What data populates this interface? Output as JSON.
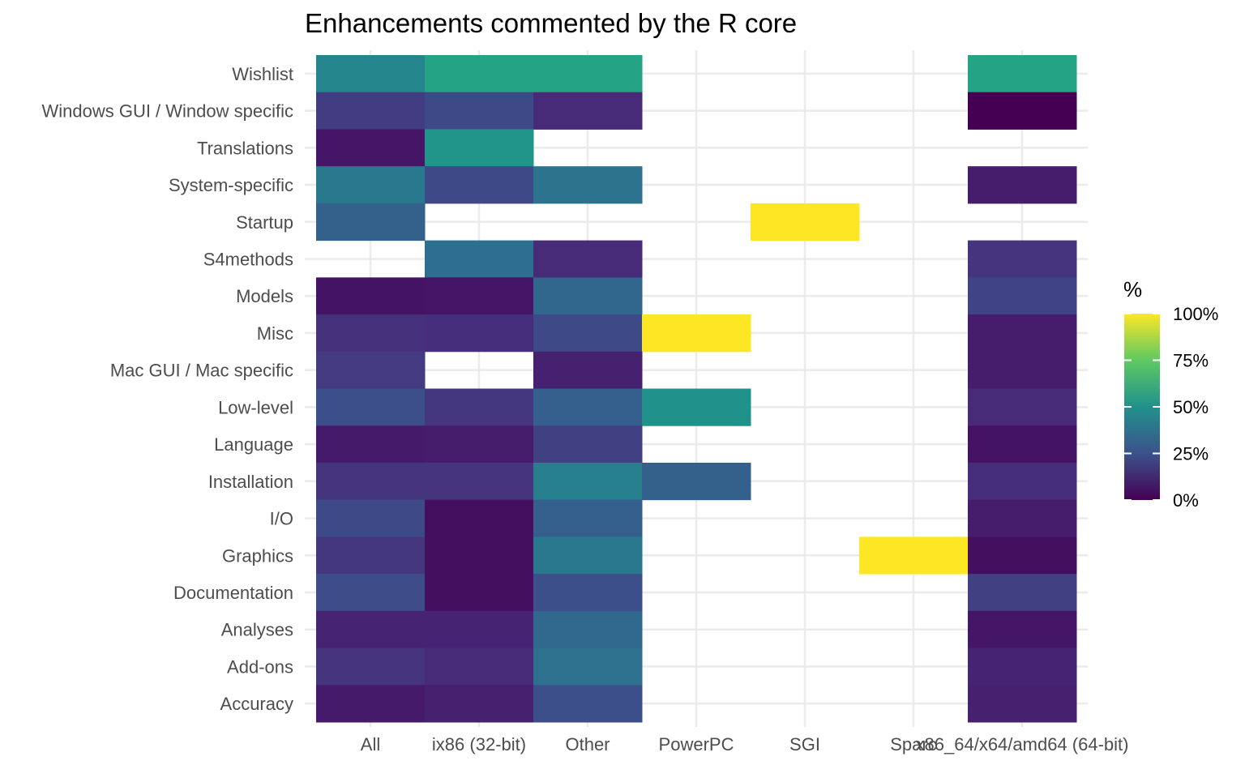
{
  "chart_data": {
    "type": "heatmap",
    "title": "Enhancements commented by the R core",
    "xlabel": "",
    "ylabel": "",
    "x_categories": [
      "All",
      "ix86 (32-bit)",
      "Other",
      "PowerPC",
      "SGI",
      "Sparc",
      "x86_64/x64/amd64 (64-bit)"
    ],
    "y_categories": [
      "Wishlist",
      "Windows GUI / Window specific",
      "Translations",
      "System-specific",
      "Startup",
      "S4methods",
      "Models",
      "Misc",
      "Mac GUI / Mac specific",
      "Low-level",
      "Language",
      "Installation",
      "I/O",
      "Graphics",
      "Documentation",
      "Analyses",
      "Add-ons",
      "Accuracy"
    ],
    "values": [
      [
        45,
        58,
        58,
        null,
        null,
        null,
        58
      ],
      [
        18,
        22,
        12,
        null,
        null,
        null,
        0
      ],
      [
        6,
        52,
        null,
        null,
        null,
        null,
        null
      ],
      [
        40,
        22,
        38,
        null,
        null,
        null,
        8
      ],
      [
        31,
        null,
        null,
        null,
        100,
        null,
        null
      ],
      [
        null,
        36,
        12,
        null,
        null,
        null,
        15
      ],
      [
        5,
        6,
        33,
        null,
        null,
        null,
        20
      ],
      [
        14,
        13,
        22,
        100,
        null,
        null,
        8
      ],
      [
        17,
        null,
        9,
        null,
        null,
        null,
        8
      ],
      [
        24,
        16,
        30,
        50,
        null,
        null,
        12
      ],
      [
        7,
        8,
        19,
        null,
        null,
        null,
        5
      ],
      [
        15,
        15,
        43,
        31,
        null,
        null,
        13
      ],
      [
        22,
        4,
        30,
        null,
        null,
        null,
        8
      ],
      [
        16,
        4,
        40,
        null,
        null,
        100,
        4
      ],
      [
        23,
        4,
        24,
        null,
        null,
        null,
        19
      ],
      [
        10,
        10,
        34,
        null,
        null,
        null,
        6
      ],
      [
        15,
        12,
        37,
        null,
        null,
        null,
        10
      ],
      [
        7,
        9,
        24,
        null,
        null,
        null,
        9
      ]
    ],
    "legend": {
      "title": "%",
      "labels": [
        "100%",
        "75%",
        "50%",
        "25%",
        "0%"
      ],
      "range": [
        0,
        100
      ],
      "position": "right"
    },
    "colormap": "viridis",
    "grid": true
  }
}
